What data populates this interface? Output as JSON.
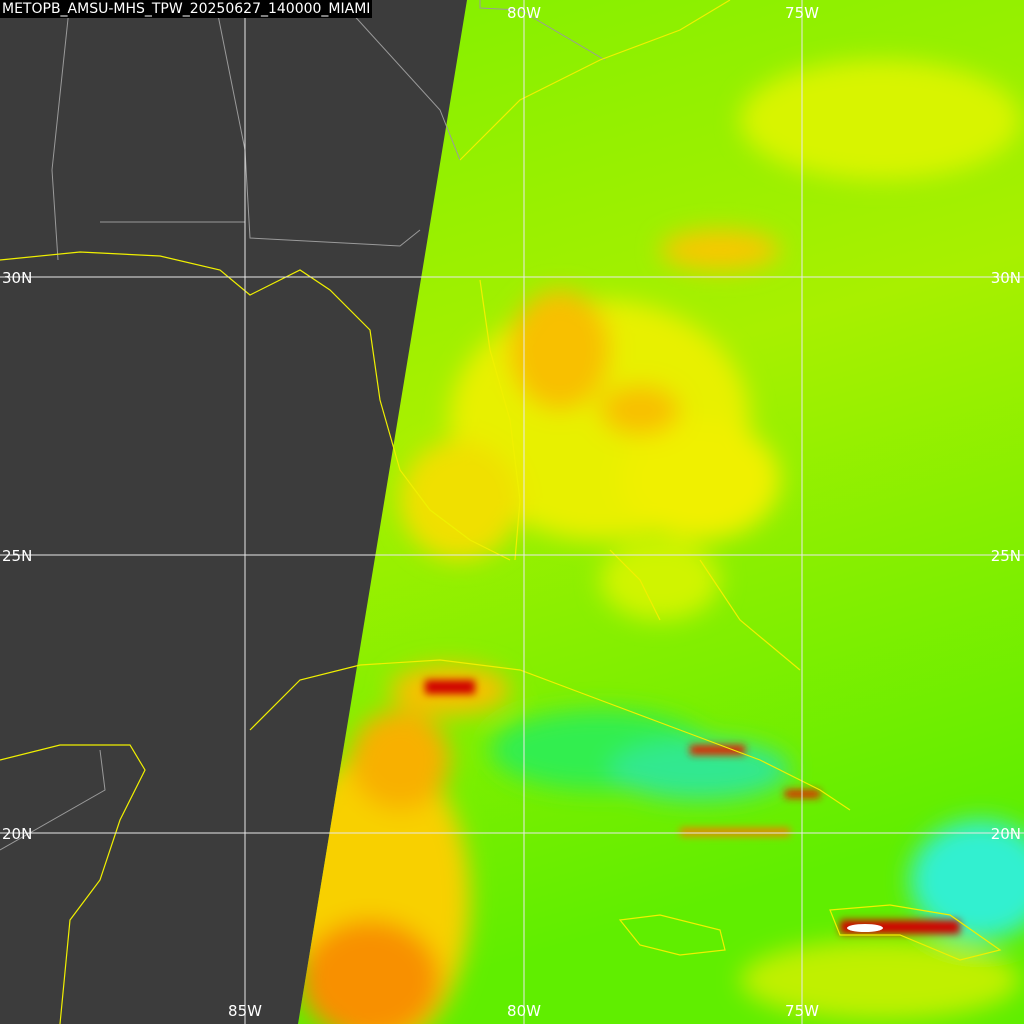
{
  "title": "METOPB_AMSU-MHS_TPW_20250627_140000_MIAMI",
  "grid_labels": {
    "top": [
      "80W",
      "75W"
    ],
    "bottom": [
      "85W",
      "80W",
      "75W"
    ],
    "left": [
      "30N",
      "25N",
      "20N"
    ],
    "right": [
      "30N",
      "25N",
      "20N"
    ]
  }
}
